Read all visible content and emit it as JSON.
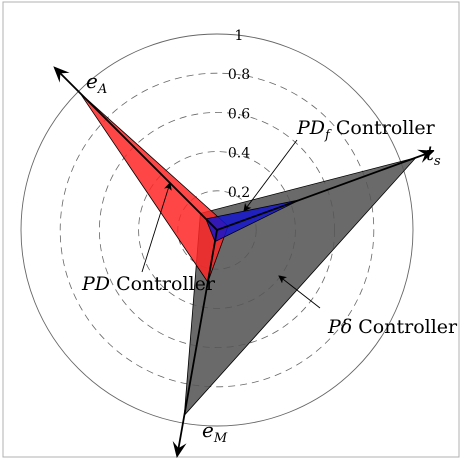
{
  "chart_data": {
    "type": "radar",
    "title": "",
    "axes": [
      {
        "key": "tA",
        "name": "t",
        "sub": "s",
        "angle_deg": 20
      },
      {
        "key": "eA",
        "name": "e",
        "sub": "A",
        "angle_deg": 135
      },
      {
        "key": "eM",
        "name": "e",
        "sub": "M",
        "angle_deg": 260
      }
    ],
    "r_ticks": [
      0.2,
      0.4,
      0.6,
      0.8,
      1
    ],
    "r_tick_labels": [
      "0.2",
      "0.4",
      "0.6",
      "0.8",
      "1"
    ],
    "rlim": [
      0,
      1
    ],
    "series": [
      {
        "name": "Pδ Controller",
        "label_math": "Pδ",
        "color": "#555555",
        "opacity": 0.88,
        "values": {
          "tA": 1.08,
          "eA": 0.12,
          "eM": 0.96
        }
      },
      {
        "name": "PD Controller",
        "label_math": "PD",
        "color": "#ff2626",
        "opacity": 0.85,
        "values": {
          "tA": 0.06,
          "eA": 0.99,
          "eM": 0.27
        }
      },
      {
        "name": "PD_f Controller",
        "label_math": "PD",
        "label_sub": "f",
        "color": "#1414cc",
        "opacity": 0.85,
        "values": {
          "tA": 0.45,
          "eA": 0.08,
          "eM": 0.06
        }
      }
    ],
    "annotation_suffix": "Controller",
    "colors": {
      "grid": "#666666",
      "axis": "#000000"
    }
  }
}
